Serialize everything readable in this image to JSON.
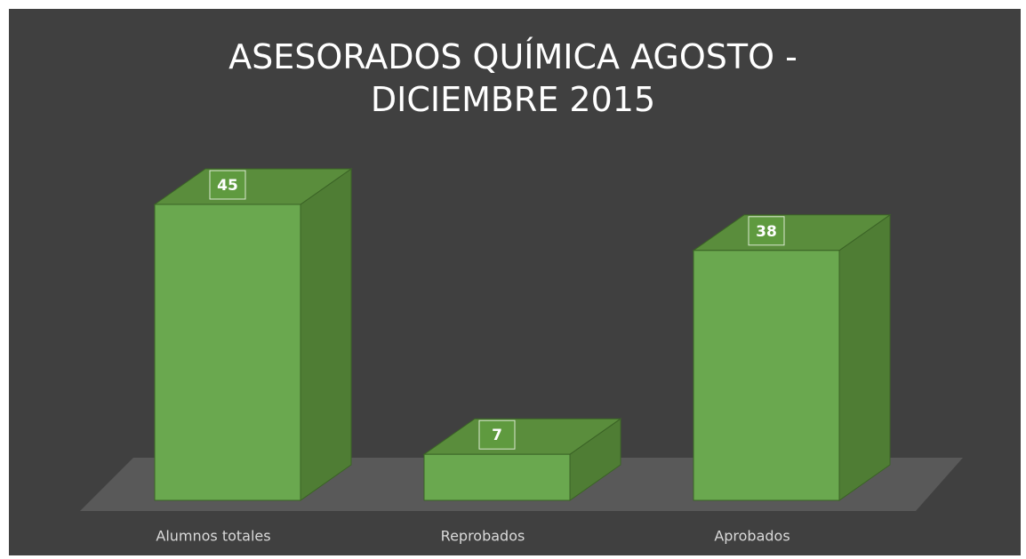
{
  "chart_data": {
    "type": "bar3d",
    "title": "ASESORADOS QUÍMICA AGOSTO - DICIEMBRE 2015",
    "categories": [
      "Alumnos totales",
      "Reprobados",
      "Aprobados"
    ],
    "values": [
      45,
      7,
      38
    ],
    "color": "#6aa84f"
  }
}
